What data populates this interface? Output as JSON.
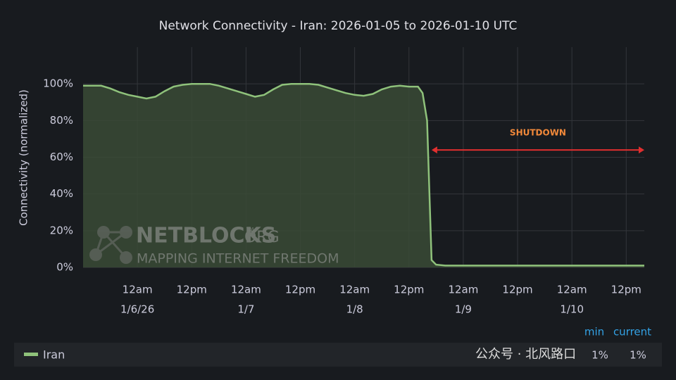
{
  "chart_data": {
    "type": "line",
    "title": "Network Connectivity - Iran: 2026-01-05 to 2026-01-10 UTC",
    "y_label": "Connectivity (normalized)",
    "x": [
      "2026-01-05T12:00",
      "2026-01-05T16:00",
      "2026-01-05T18:00",
      "2026-01-05T20:00",
      "2026-01-05T22:00",
      "2026-01-06T00:00",
      "2026-01-06T02:00",
      "2026-01-06T04:00",
      "2026-01-06T06:00",
      "2026-01-06T08:00",
      "2026-01-06T10:00",
      "2026-01-06T12:00",
      "2026-01-06T16:00",
      "2026-01-06T18:00",
      "2026-01-06T20:00",
      "2026-01-06T22:00",
      "2026-01-07T00:00",
      "2026-01-07T02:00",
      "2026-01-07T04:00",
      "2026-01-07T06:00",
      "2026-01-07T08:00",
      "2026-01-07T10:00",
      "2026-01-07T14:00",
      "2026-01-07T16:00",
      "2026-01-07T18:00",
      "2026-01-07T20:00",
      "2026-01-07T22:00",
      "2026-01-08T00:00",
      "2026-01-08T02:00",
      "2026-01-08T04:00",
      "2026-01-08T06:00",
      "2026-01-08T08:00",
      "2026-01-08T10:00",
      "2026-01-08T12:00",
      "2026-01-08T14:00",
      "2026-01-08T15:00",
      "2026-01-08T16:00",
      "2026-01-08T17:00",
      "2026-01-08T18:00",
      "2026-01-08T20:00",
      "2026-01-09T12:00",
      "2026-01-10T00:00",
      "2026-01-10T16:00"
    ],
    "series": [
      {
        "name": "Iran",
        "color": "#8fc27b",
        "fill": "#3a4a36",
        "values": [
          99,
          99,
          97.5,
          95.5,
          94,
          93,
          92,
          93,
          96,
          98.5,
          99.5,
          100,
          100,
          99,
          97.5,
          96,
          94.5,
          93,
          94,
          97,
          99.5,
          100,
          100,
          99.5,
          98,
          96.5,
          95,
          94,
          93.5,
          94.5,
          97,
          98.5,
          99,
          98.5,
          98.5,
          95,
          80,
          4,
          1.5,
          1,
          1,
          1,
          1
        ]
      }
    ],
    "xlim": [
      "2026-01-05T12:00",
      "2026-01-10T16:00"
    ],
    "xticks": [
      {
        "value": "2026-01-06T00:00",
        "label": "12am",
        "date": "1/6/26"
      },
      {
        "value": "2026-01-06T12:00",
        "label": "12pm"
      },
      {
        "value": "2026-01-07T00:00",
        "label": "12am",
        "date": "1/7"
      },
      {
        "value": "2026-01-07T12:00",
        "label": "12pm"
      },
      {
        "value": "2026-01-08T00:00",
        "label": "12am",
        "date": "1/8"
      },
      {
        "value": "2026-01-08T12:00",
        "label": "12pm"
      },
      {
        "value": "2026-01-09T00:00",
        "label": "12am",
        "date": "1/9"
      },
      {
        "value": "2026-01-09T12:00",
        "label": "12pm"
      },
      {
        "value": "2026-01-10T00:00",
        "label": "12am",
        "date": "1/10"
      },
      {
        "value": "2026-01-10T12:00",
        "label": "12pm"
      }
    ],
    "ylim": [
      0,
      120
    ],
    "yticks": [
      {
        "value": 0,
        "label": "0%"
      },
      {
        "value": 20,
        "label": "20%"
      },
      {
        "value": 40,
        "label": "40%"
      },
      {
        "value": 60,
        "label": "60%"
      },
      {
        "value": 80,
        "label": "80%"
      },
      {
        "value": 100,
        "label": "100%"
      }
    ],
    "grid": true,
    "annotation": {
      "text": "SHUTDOWN",
      "start": "2026-01-08T17:00",
      "end": "2026-01-10T16:00",
      "color": "#e02f2f",
      "text_color": "#f2893a"
    },
    "legend": {
      "headers": [
        "min",
        "current"
      ],
      "values": [
        1,
        1
      ],
      "value_labels": [
        "1%",
        "1%"
      ]
    },
    "watermark": {
      "brand": "NETBLOCKS",
      "suffix": ".ORG",
      "mark": "TM",
      "tagline": "MAPPING INTERNET FREEDOM"
    },
    "overlay": "公众号 · 北风路口"
  }
}
